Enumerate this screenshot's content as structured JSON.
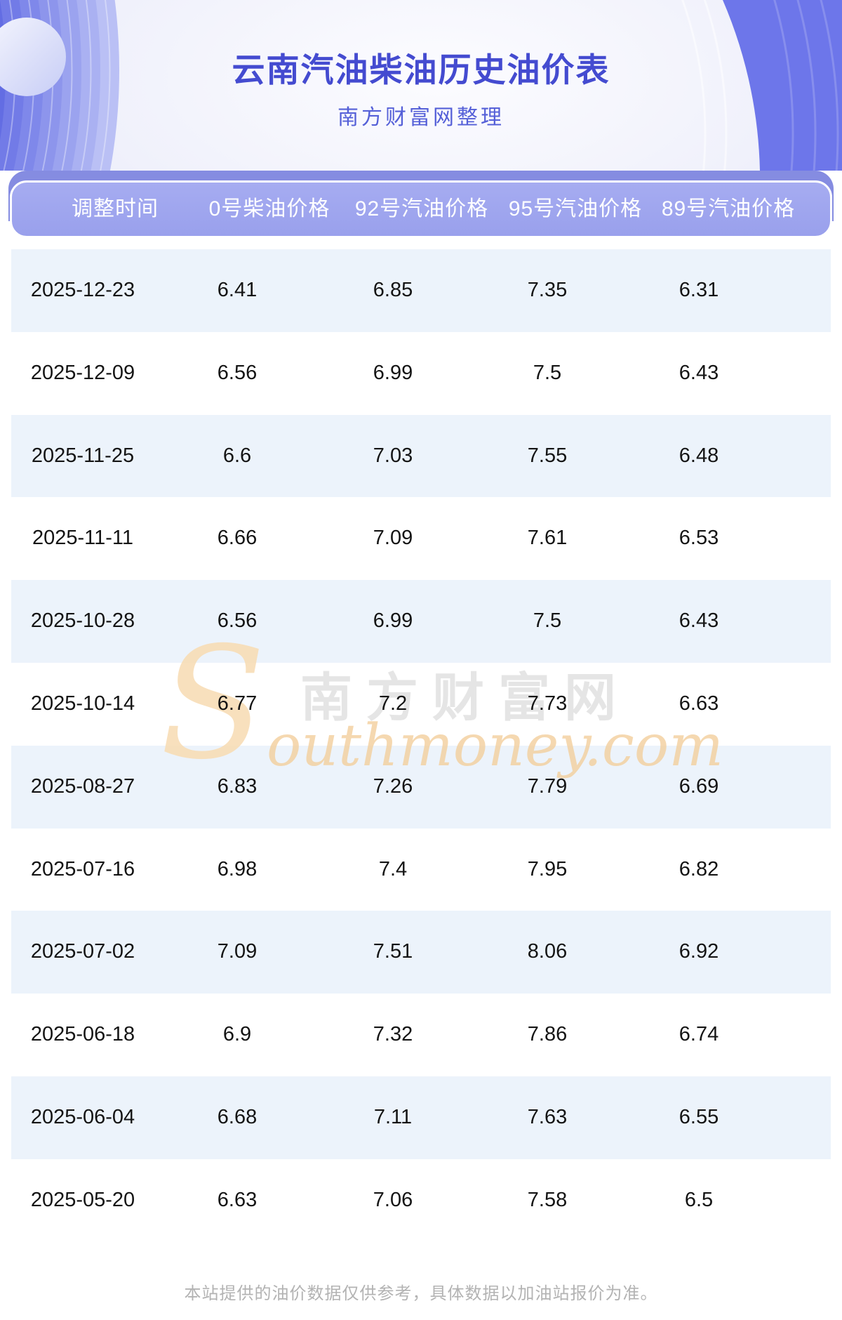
{
  "page": {
    "title": "云南汽油柴油历史油价表",
    "subtitle": "南方财富网整理"
  },
  "table": {
    "headers": [
      "调整时间",
      "0号柴油价格",
      "92号汽油价格",
      "95号汽油价格",
      "89号汽油价格"
    ],
    "rows": [
      [
        "2025-12-23",
        "6.41",
        "6.85",
        "7.35",
        "6.31"
      ],
      [
        "2025-12-09",
        "6.56",
        "6.99",
        "7.5",
        "6.43"
      ],
      [
        "2025-11-25",
        "6.6",
        "7.03",
        "7.55",
        "6.48"
      ],
      [
        "2025-11-11",
        "6.66",
        "7.09",
        "7.61",
        "6.53"
      ],
      [
        "2025-10-28",
        "6.56",
        "6.99",
        "7.5",
        "6.43"
      ],
      [
        "2025-10-14",
        "6.77",
        "7.2",
        "7.73",
        "6.63"
      ],
      [
        "2025-08-27",
        "6.83",
        "7.26",
        "7.79",
        "6.69"
      ],
      [
        "2025-07-16",
        "6.98",
        "7.4",
        "7.95",
        "6.82"
      ],
      [
        "2025-07-02",
        "7.09",
        "7.51",
        "8.06",
        "6.92"
      ],
      [
        "2025-06-18",
        "6.9",
        "7.32",
        "7.86",
        "6.74"
      ],
      [
        "2025-06-04",
        "6.68",
        "7.11",
        "7.63",
        "6.55"
      ],
      [
        "2025-05-20",
        "6.63",
        "7.06",
        "7.58",
        "6.5"
      ]
    ]
  },
  "watermark": {
    "cn": "南方财富网",
    "initial": "S",
    "en": "outhmoney.com"
  },
  "footer": {
    "disclaimer": "本站提供的油价数据仅供参考，具体数据以加油站报价为准。"
  },
  "colors": {
    "accent_purple": "#6d76ea",
    "header_bar": "#99a0ec",
    "header_back_band": "#858ce1",
    "title_text": "#444bd0",
    "stripe_row": "#ecf3fb",
    "watermark_orange": "#f3cf9d",
    "footer_text": "#b3b3b3"
  }
}
